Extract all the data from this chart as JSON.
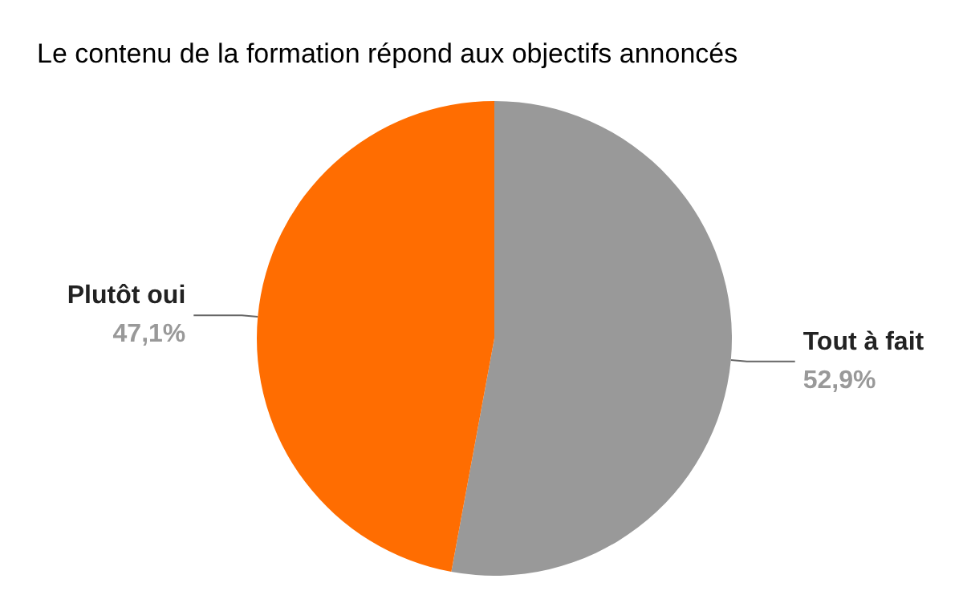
{
  "chart_data": {
    "type": "pie",
    "title": "Le contenu de la formation répond aux objectifs annoncés",
    "categories": [
      "Tout à fait",
      "Plutôt oui"
    ],
    "values": [
      52.9,
      47.1
    ],
    "colors": [
      "#999999",
      "#ff6d01"
    ],
    "value_labels": [
      "52,9%",
      "47,1%"
    ],
    "legend": false
  }
}
